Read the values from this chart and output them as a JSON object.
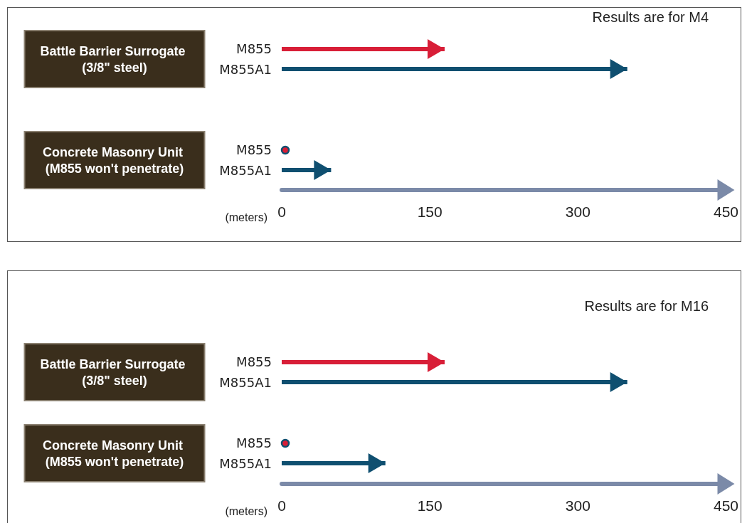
{
  "chart_data": [
    {
      "type": "bar",
      "orientation": "horizontal",
      "subtitle": "Results are for M4",
      "xlabel": "(meters)",
      "categories": [
        "Battle Barrier Surrogate (3/8\" steel)",
        "Concrete Masonry Unit (M855 won't penetrate)"
      ],
      "series": [
        {
          "name": "M855",
          "color": "#d81e37",
          "values": [
            165,
            0
          ]
        },
        {
          "name": "M855A1",
          "color": "#0f4f70",
          "values": [
            350,
            50
          ]
        }
      ],
      "xlim": [
        0,
        450
      ],
      "xticks": [
        0,
        150,
        300,
        450
      ]
    },
    {
      "type": "bar",
      "orientation": "horizontal",
      "subtitle": "Results are for M16",
      "xlabel": "(meters)",
      "categories": [
        "Battle Barrier Surrogate (3/8\" steel)",
        "Concrete Masonry Unit (M855 won't penetrate)"
      ],
      "series": [
        {
          "name": "M855",
          "color": "#d81e37",
          "values": [
            165,
            0
          ]
        },
        {
          "name": "M855A1",
          "color": "#0f4f70",
          "values": [
            350,
            105
          ]
        }
      ],
      "xlim": [
        0,
        450
      ],
      "xticks": [
        0,
        150,
        300,
        450
      ]
    }
  ]
}
